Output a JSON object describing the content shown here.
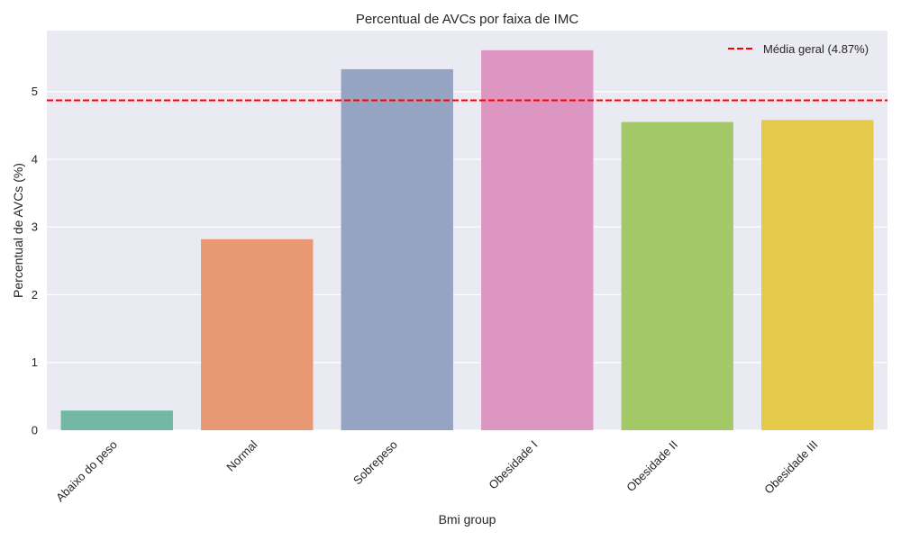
{
  "chart_data": {
    "type": "bar",
    "title": "Percentual de AVCs por faixa de IMC",
    "xlabel": "Bmi group",
    "ylabel": "Percentual de AVCs (%)",
    "categories": [
      "Abaixo do peso",
      "Normal",
      "Sobrepeso",
      "Obesidade I",
      "Obesidade II",
      "Obesidade III"
    ],
    "values": [
      0.29,
      2.82,
      5.33,
      5.61,
      4.55,
      4.58
    ],
    "colors": [
      "#72b8a2",
      "#e89873",
      "#95a4c3",
      "#dc96c1",
      "#a2c867",
      "#e5c94a"
    ],
    "ylim": [
      0,
      5.9
    ],
    "yticks": [
      "0",
      "1",
      "2",
      "3",
      "4",
      "5"
    ],
    "grid": true,
    "reference_line": {
      "value": 4.87,
      "label": "Média geral (4.87%)",
      "color": "#ff0000",
      "style": "dashed"
    },
    "legend": {
      "position": "top-right"
    },
    "background": "#eaeaf2"
  }
}
